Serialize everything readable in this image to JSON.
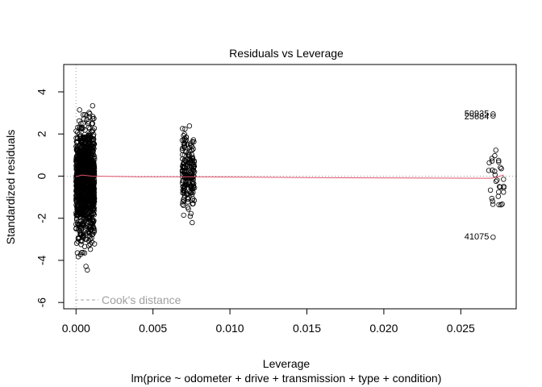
{
  "chart_data": {
    "type": "scatter",
    "title": "Residuals vs Leverage",
    "xlabel": "Leverage",
    "subtitle": "lm(price ~ odometer + drive + transmission + type + condition)",
    "ylabel": "Standardized residuals",
    "xlim": [
      -0.0008,
      0.0286
    ],
    "ylim": [
      -6.3,
      5.3
    ],
    "x_ticks": [
      "0.000",
      "0.005",
      "0.010",
      "0.015",
      "0.020",
      "0.025"
    ],
    "x_tick_values": [
      0.0,
      0.005,
      0.01,
      0.015,
      0.02,
      0.025
    ],
    "y_ticks": [
      "-6",
      "-4",
      "-2",
      "0",
      "2",
      "4"
    ],
    "y_tick_values": [
      -6,
      -4,
      -2,
      0,
      2,
      4
    ],
    "grid": false,
    "reference_lines": {
      "horizontal_y": 0,
      "vertical_x": 0,
      "style": "dotted grey"
    },
    "legend": {
      "entries": [
        "Cook's distance"
      ],
      "placement": "bottom-left",
      "line_style": "dashed grey"
    },
    "smoother_color": "#df536b",
    "point_color": "#000000",
    "clusters": [
      {
        "x_range": [
          0.0,
          0.0012
        ],
        "y_range": [
          -5.1,
          4.7
        ],
        "approx_count": 1200
      },
      {
        "x_range": [
          0.0069,
          0.0077
        ],
        "y_range": [
          -3.2,
          3.6
        ],
        "approx_count": 200
      },
      {
        "x_range": [
          0.0268,
          0.0278
        ],
        "y_range": [
          -3.0,
          3.0
        ],
        "approx_count": 30
      }
    ],
    "smoother": [
      {
        "x": 0.0,
        "y": -0.02
      },
      {
        "x": 0.0004,
        "y": 0.05
      },
      {
        "x": 0.001,
        "y": 0.0
      },
      {
        "x": 0.004,
        "y": -0.03
      },
      {
        "x": 0.0072,
        "y": -0.03
      },
      {
        "x": 0.0175,
        "y": -0.08
      },
      {
        "x": 0.027,
        "y": -0.1
      },
      {
        "x": 0.0278,
        "y": 0.05
      }
    ],
    "labeled_points": [
      {
        "label": "50935",
        "x": 0.0271,
        "y": 2.95
      },
      {
        "label": "25684",
        "x": 0.0271,
        "y": 2.85
      },
      {
        "label": "41075",
        "x": 0.0271,
        "y": -2.9
      }
    ]
  }
}
